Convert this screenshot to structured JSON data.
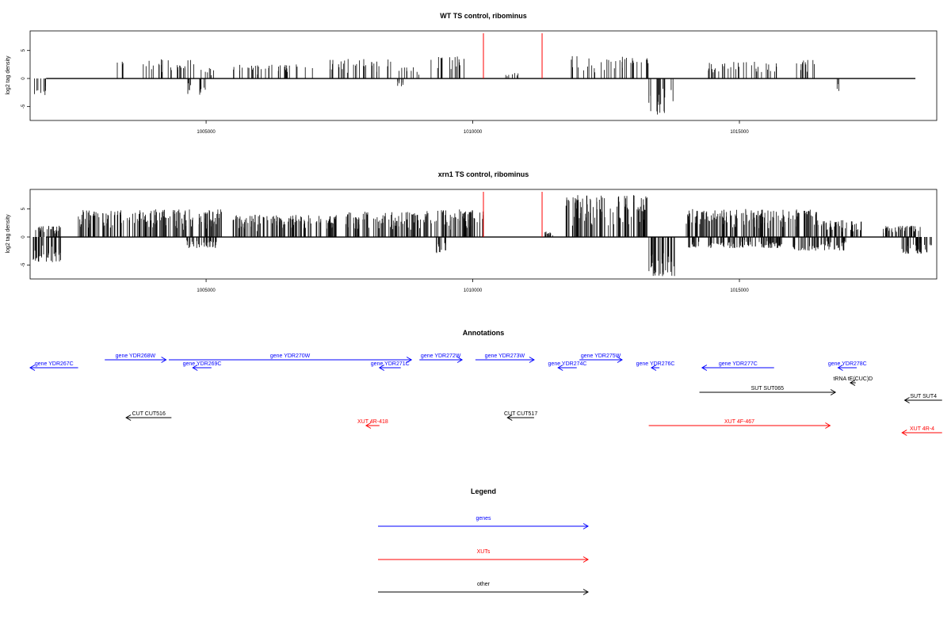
{
  "colors": {
    "gene": "#0000ff",
    "xut": "#ff0000",
    "other": "#000000",
    "marker": "#ff0000",
    "bars": "#000000"
  },
  "chart_data": [
    {
      "type": "bar",
      "title": "WT TS control, ribominus",
      "ylabel": "log2 tag density",
      "xlim": [
        1001700,
        1018700
      ],
      "ylim": [
        -7.5,
        8.5
      ],
      "x_ticks": [
        1005000,
        1010000,
        1015000
      ],
      "x_tick_labels": [
        "1005000",
        "1010000",
        "1015000"
      ],
      "y_ticks": [
        -5,
        0,
        5
      ],
      "y_tick_labels": [
        "-5",
        "0",
        "5"
      ],
      "vertical_markers": [
        1010200,
        1011300
      ],
      "positive_clusters": [
        {
          "start": 1003300,
          "end": 1003500,
          "height": 3.0
        },
        {
          "start": 1003700,
          "end": 1004800,
          "height": 3.5
        },
        {
          "start": 1004900,
          "end": 1005200,
          "height": 2.0
        },
        {
          "start": 1005500,
          "end": 1007000,
          "height": 2.5
        },
        {
          "start": 1007200,
          "end": 1008500,
          "height": 3.5
        },
        {
          "start": 1008600,
          "end": 1009000,
          "height": 2.0
        },
        {
          "start": 1009200,
          "end": 1009900,
          "height": 4.0
        },
        {
          "start": 1010600,
          "end": 1010900,
          "height": 1.0
        },
        {
          "start": 1011800,
          "end": 1013300,
          "height": 4.0
        },
        {
          "start": 1014400,
          "end": 1015800,
          "height": 3.0
        },
        {
          "start": 1016000,
          "end": 1016500,
          "height": 3.5
        }
      ],
      "negative_clusters": [
        {
          "start": 1001750,
          "end": 1002000,
          "height": 3.0
        },
        {
          "start": 1004600,
          "end": 1005000,
          "height": 3.0
        },
        {
          "start": 1008500,
          "end": 1008700,
          "height": 1.5
        },
        {
          "start": 1013300,
          "end": 1013800,
          "height": 6.5
        },
        {
          "start": 1016800,
          "end": 1016900,
          "height": 3.0
        }
      ]
    },
    {
      "type": "bar",
      "title": "xrn1 TS control, ribominus",
      "ylabel": "log2 tag density",
      "xlim": [
        1001700,
        1018700
      ],
      "ylim": [
        -7.5,
        8.5
      ],
      "x_ticks": [
        1005000,
        1010000,
        1015000
      ],
      "x_tick_labels": [
        "1005000",
        "1010000",
        "1015000"
      ],
      "y_ticks": [
        -5,
        0,
        5
      ],
      "y_tick_labels": [
        "-5",
        "0",
        "5"
      ],
      "vertical_markers": [
        1010200,
        1011300
      ],
      "positive_clusters": [
        {
          "start": 1001800,
          "end": 1002300,
          "height": 2.0
        },
        {
          "start": 1002600,
          "end": 1005300,
          "height": 5.0
        },
        {
          "start": 1005500,
          "end": 1007500,
          "height": 4.0
        },
        {
          "start": 1007600,
          "end": 1009000,
          "height": 4.5
        },
        {
          "start": 1009000,
          "end": 1010200,
          "height": 5.0
        },
        {
          "start": 1011300,
          "end": 1011500,
          "height": 1.0
        },
        {
          "start": 1011700,
          "end": 1013300,
          "height": 7.5
        },
        {
          "start": 1014000,
          "end": 1016500,
          "height": 5.0
        },
        {
          "start": 1016500,
          "end": 1017300,
          "height": 3.0
        },
        {
          "start": 1017700,
          "end": 1018400,
          "height": 2.0
        }
      ],
      "negative_clusters": [
        {
          "start": 1001750,
          "end": 1002300,
          "height": 4.5
        },
        {
          "start": 1004600,
          "end": 1005200,
          "height": 2.0
        },
        {
          "start": 1009300,
          "end": 1009500,
          "height": 3.0
        },
        {
          "start": 1013300,
          "end": 1013800,
          "height": 7.0
        },
        {
          "start": 1014000,
          "end": 1015800,
          "height": 2.0
        },
        {
          "start": 1016000,
          "end": 1017000,
          "height": 2.5
        },
        {
          "start": 1018000,
          "end": 1018600,
          "height": 3.0
        }
      ]
    }
  ],
  "annotations": {
    "title": "Annotations",
    "features": [
      {
        "label": "gene YDR267C",
        "type": "gene",
        "strand": "-",
        "start": 1001700,
        "end": 1002600,
        "row": 1
      },
      {
        "label": "gene YDR268W",
        "type": "gene",
        "strand": "+",
        "start": 1003100,
        "end": 1004250,
        "row": 0
      },
      {
        "label": "gene YDR269C",
        "type": "gene",
        "strand": "-",
        "start": 1004750,
        "end": 1005100,
        "row": 1
      },
      {
        "label": "gene YDR270W",
        "type": "gene",
        "strand": "+",
        "start": 1004300,
        "end": 1008850,
        "row": 0
      },
      {
        "label": "gene YDR271C",
        "type": "gene",
        "strand": "-",
        "start": 1008250,
        "end": 1008650,
        "row": 1
      },
      {
        "label": "gene YDR272W",
        "type": "gene",
        "strand": "+",
        "start": 1009000,
        "end": 1009800,
        "row": 0
      },
      {
        "label": "gene YDR273W",
        "type": "gene",
        "strand": "+",
        "start": 1010050,
        "end": 1011150,
        "row": 0
      },
      {
        "label": "gene YDR274C",
        "type": "gene",
        "strand": "-",
        "start": 1011600,
        "end": 1011950,
        "row": 1
      },
      {
        "label": "gene YDR275W",
        "type": "gene",
        "strand": "+",
        "start": 1012000,
        "end": 1012800,
        "row": 0
      },
      {
        "label": "gene YDR276C",
        "type": "gene",
        "strand": "-",
        "start": 1013350,
        "end": 1013500,
        "row": 1
      },
      {
        "label": "gene YDR277C",
        "type": "gene",
        "strand": "-",
        "start": 1014300,
        "end": 1015650,
        "row": 1
      },
      {
        "label": "gene YDR278C",
        "type": "gene",
        "strand": "-",
        "start": 1016850,
        "end": 1017200,
        "row": 1
      },
      {
        "label": "tRNA tE(CUC)D",
        "type": "other",
        "strand": "-",
        "start": 1017080,
        "end": 1017180,
        "row": 2
      },
      {
        "label": "SUT SUT065",
        "type": "other",
        "strand": "+",
        "start": 1014250,
        "end": 1016800,
        "row": 3
      },
      {
        "label": "SUT SUT4",
        "type": "other",
        "strand": "-",
        "start": 1018100,
        "end": 1018800,
        "row": 4
      },
      {
        "label": "CUT CUT516",
        "type": "other",
        "strand": "-",
        "start": 1003500,
        "end": 1004350,
        "row": 5
      },
      {
        "label": "CUT CUT517",
        "type": "other",
        "strand": "-",
        "start": 1010650,
        "end": 1011150,
        "row": 5
      },
      {
        "label": "XUT 4R-418",
        "type": "xut",
        "strand": "-",
        "start": 1008000,
        "end": 1008250,
        "row": 6
      },
      {
        "label": "XUT 4F-467",
        "type": "xut",
        "strand": "+",
        "start": 1013300,
        "end": 1016700,
        "row": 6
      },
      {
        "label": "XUT 4R-4",
        "type": "xut",
        "strand": "-",
        "start": 1018050,
        "end": 1018800,
        "row": 7
      }
    ]
  },
  "legend": {
    "title": "Legend",
    "items": [
      {
        "label": "genes",
        "type": "gene"
      },
      {
        "label": "XUTs",
        "type": "xut"
      },
      {
        "label": "other",
        "type": "other"
      }
    ]
  }
}
